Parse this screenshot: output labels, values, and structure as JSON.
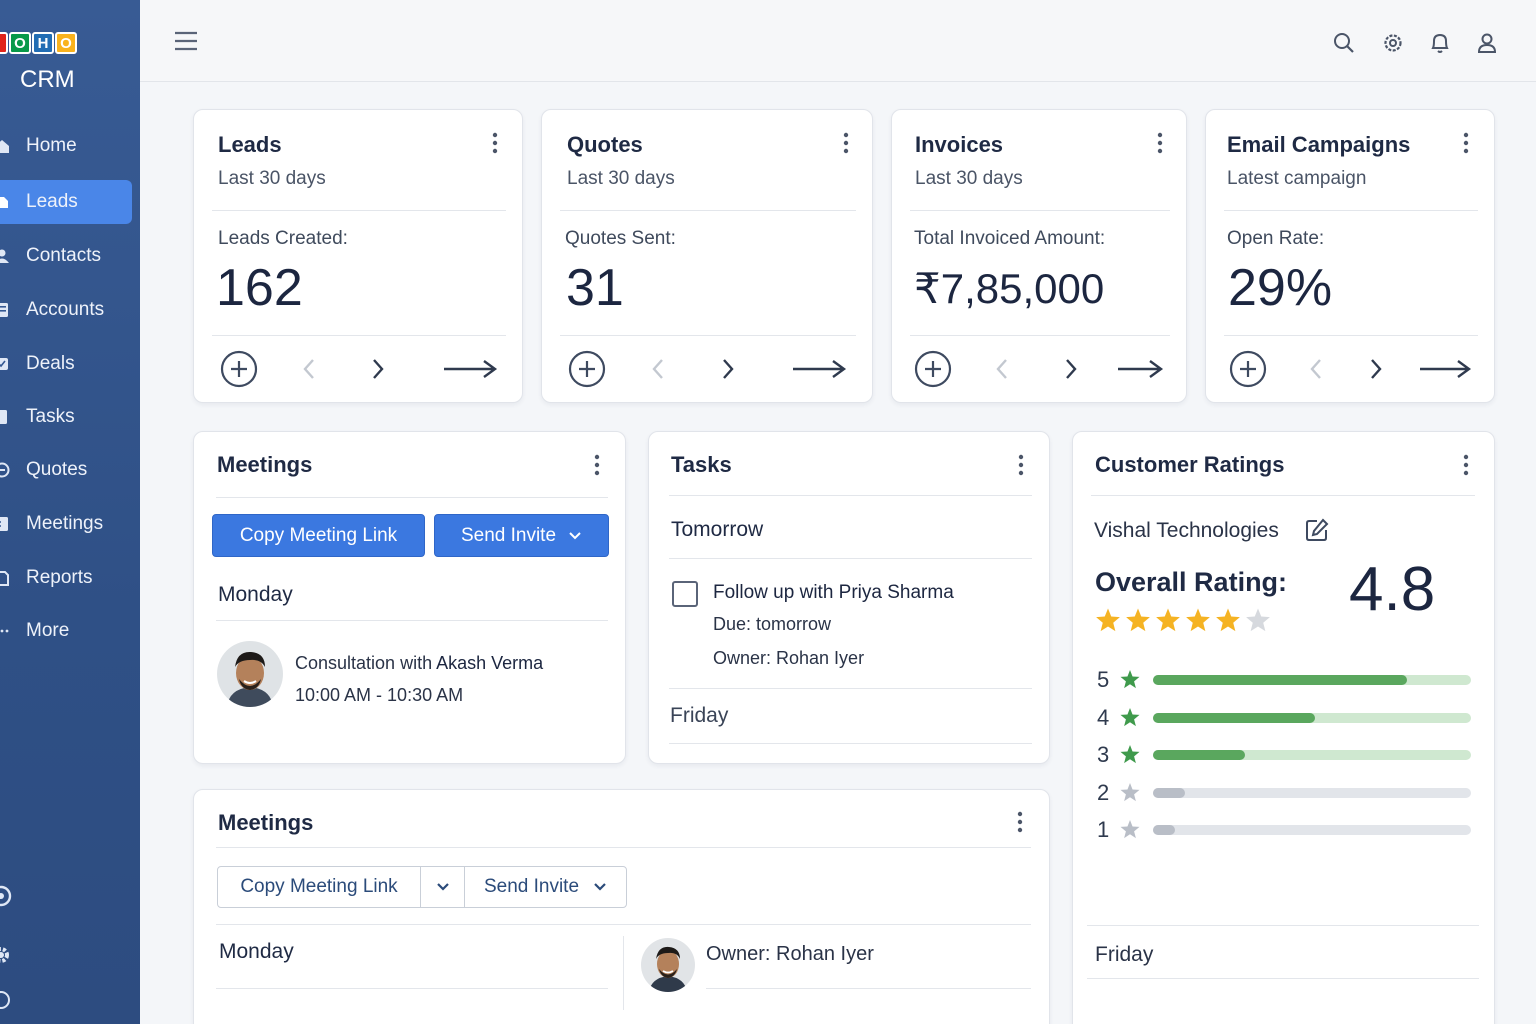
{
  "app": {
    "logo_letters": [
      "O",
      "H",
      "O"
    ],
    "product": "CRM"
  },
  "sidebar": {
    "items": [
      {
        "label": "Home",
        "icon": "home-icon"
      },
      {
        "label": "Leads",
        "icon": "leads-icon",
        "active": true
      },
      {
        "label": "Contacts",
        "icon": "contacts-icon"
      },
      {
        "label": "Accounts",
        "icon": "accounts-icon"
      },
      {
        "label": "Deals",
        "icon": "deals-icon"
      },
      {
        "label": "Tasks",
        "icon": "tasks-icon"
      },
      {
        "label": "Quotes",
        "icon": "quotes-icon"
      },
      {
        "label": "Meetings",
        "icon": "meetings-icon"
      },
      {
        "label": "Reports",
        "icon": "reports-icon"
      },
      {
        "label": "More",
        "icon": "more-dots-icon"
      }
    ]
  },
  "topbar": {
    "icons": [
      "menu-icon",
      "search-icon",
      "gear-icon",
      "bell-icon",
      "user-icon"
    ]
  },
  "stats": [
    {
      "title": "Leads",
      "subtitle": "Last 30 days",
      "metric_label": "Leads Created:",
      "value": "162"
    },
    {
      "title": "Quotes",
      "subtitle": "Last 30 days",
      "metric_label": "Quotes Sent:",
      "value": "31"
    },
    {
      "title": "Invoices",
      "subtitle": "Last 30 days",
      "metric_label": "Total Invoiced Amount:",
      "value": "₹7,85,000"
    },
    {
      "title": "Email Campaigns",
      "subtitle": "Latest campaign",
      "metric_label": "Open Rate:",
      "value": "29%"
    }
  ],
  "meetings1": {
    "title": "Meetings",
    "copy_label": "Copy Meeting Link",
    "invite_label": "Send Invite",
    "day": "Monday",
    "meeting_prefix": "Consultation with ",
    "meeting_person": "Akash Verma",
    "meeting_time": "10:00 AM - 10:30 AM"
  },
  "tasks": {
    "title": "Tasks",
    "group1": "Tomorrow",
    "task_title": "Follow up with Priya Sharma",
    "task_due": "Due: tomorrow",
    "task_owner": "Owner:  Rohan Iyer",
    "group2": "Friday"
  },
  "ratings": {
    "title": "Customer Ratings",
    "company": "Vishal Technologies",
    "overall_label": "Overall Rating:",
    "overall_value": "4.8",
    "stars_filled": 5,
    "stars_total": 6,
    "footer_day": "Friday",
    "breakdown": [
      {
        "stars": "5",
        "fraction": 0.8,
        "accent": "#5aa75e",
        "track": "#cfe8d0",
        "star_color": "#3f9a4c"
      },
      {
        "stars": "4",
        "fraction": 0.51,
        "accent": "#5aa75e",
        "track": "#cfe8d0",
        "star_color": "#3f9a4c"
      },
      {
        "stars": "3",
        "fraction": 0.29,
        "accent": "#5aa75e",
        "track": "#cfe8d0",
        "star_color": "#3f9a4c"
      },
      {
        "stars": "2",
        "fraction": 0.1,
        "accent": "#b9bec7",
        "track": "#e2e5ea",
        "star_color": "#b9bec7"
      },
      {
        "stars": "1",
        "fraction": 0.07,
        "accent": "#b9bec7",
        "track": "#e2e5ea",
        "star_color": "#b9bec7"
      }
    ]
  },
  "meetings2": {
    "title": "Meetings",
    "copy_label": "Copy Meeting Link",
    "invite_label": "Send Invite",
    "day": "Monday",
    "owner": "Owner: Rohan Iyer"
  },
  "colors": {
    "sidebar": "#345892",
    "accent": "#3b78e0",
    "star": "#f5b323"
  }
}
